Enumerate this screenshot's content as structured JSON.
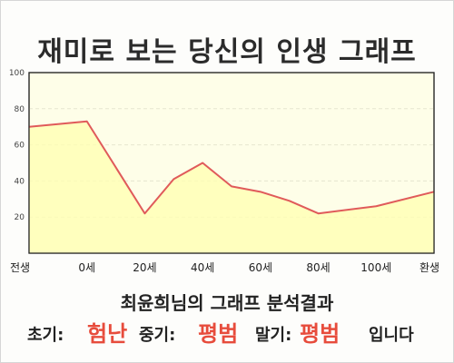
{
  "page": {
    "title": "재미로 보는 당신의 인생 그래프",
    "result_title": "최윤희님의 그래프 분석결과",
    "summary": {
      "early_label": "초기:",
      "early_value": "험난",
      "mid_label": "중기:",
      "mid_value": "평범",
      "late_label": "말기:",
      "late_value": "평범",
      "suffix": "입니다"
    },
    "colors": {
      "line": "#e05a5a",
      "fill": "#ffffb0",
      "plot_bg": "#fefee8",
      "accent": "#e74c3c"
    }
  },
  "chart_data": {
    "type": "area",
    "x_labels": [
      "전생",
      "0세",
      "20세",
      "40세",
      "60세",
      "80세",
      "100세",
      "환생"
    ],
    "x": [
      -1,
      0,
      1,
      1.5,
      2,
      2.5,
      3,
      3.5,
      4,
      5,
      6
    ],
    "values": [
      70,
      73,
      22,
      41,
      50,
      37,
      34,
      29,
      22,
      26,
      34
    ],
    "yticks": [
      20,
      40,
      60,
      80,
      100
    ],
    "ylim": [
      0,
      100
    ],
    "grid": true
  }
}
